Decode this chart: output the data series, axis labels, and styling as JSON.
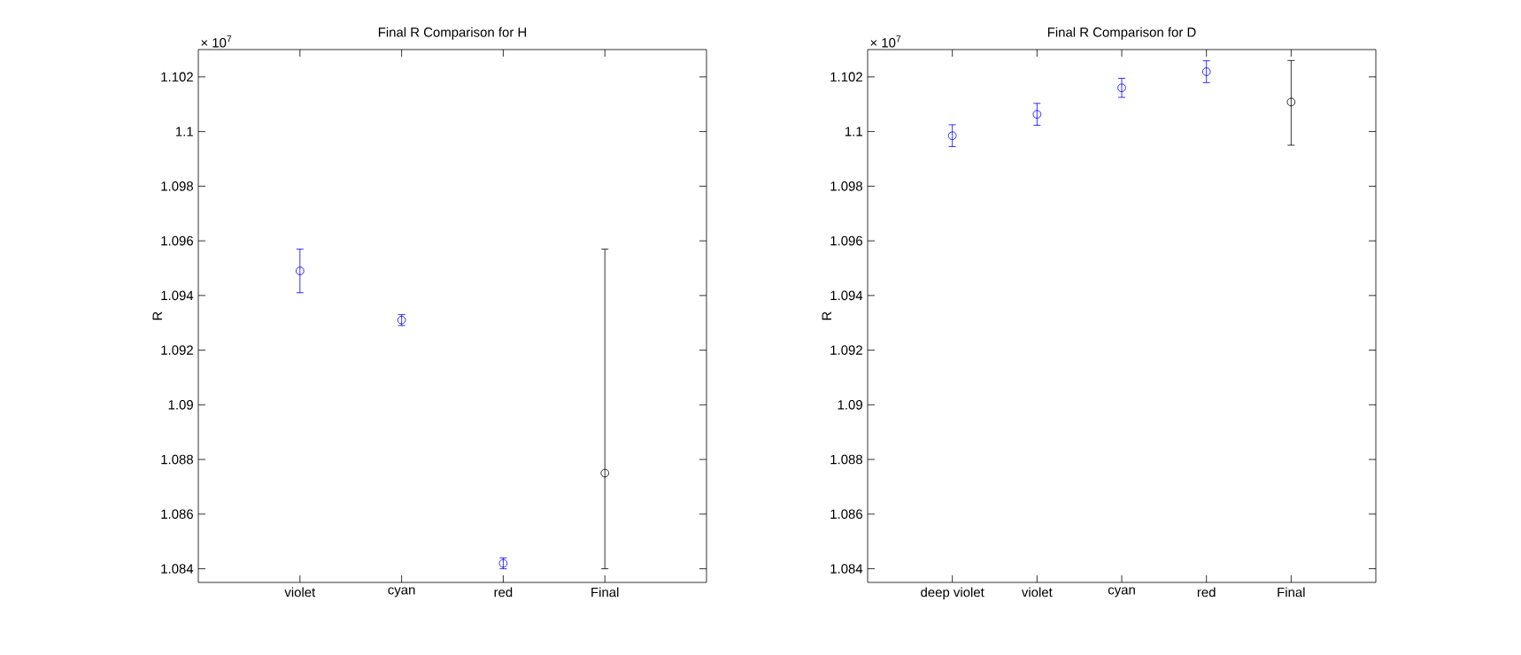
{
  "chart_data": [
    {
      "type": "scatter",
      "title": "Final R Comparison for H",
      "ylabel": "R",
      "annotations": [
        "× 10$^{7}$"
      ],
      "categories": [
        "violet",
        "cyan",
        "red",
        "Final"
      ],
      "values": [
        1.0949,
        1.0931,
        1.0842,
        1.0875
      ],
      "errors": [
        0.0008,
        0.0002,
        0.0002,
        [
          1.084,
          1.0957
        ]
      ],
      "colors": [
        "#0000ff",
        "#0000ff",
        "#0000ff",
        "#000000"
      ],
      "marker": "circle",
      "ylim": [
        1.0835,
        1.103
      ],
      "yticks": [
        1.084,
        1.086,
        1.088,
        1.09,
        1.092,
        1.094,
        1.096,
        1.098,
        1.1,
        1.102
      ]
    },
    {
      "type": "scatter",
      "title": "Final R Comparison for D",
      "ylabel": "R",
      "annotations": [
        "× 10$^{7}$"
      ],
      "categories": [
        "deep violet",
        "violet",
        "cyan",
        "red",
        "Final"
      ],
      "values": [
        1.09985,
        1.10063,
        1.1016,
        1.10219,
        1.10108
      ],
      "errors": [
        0.0004,
        0.0004,
        0.00035,
        0.0004,
        [
          1.0995,
          1.1026
        ]
      ],
      "colors": [
        "#0000ff",
        "#0000ff",
        "#0000ff",
        "#0000ff",
        "#000000"
      ],
      "marker": "circle",
      "ylim": [
        1.0835,
        1.103
      ],
      "yticks": [
        1.084,
        1.086,
        1.088,
        1.09,
        1.092,
        1.094,
        1.096,
        1.098,
        1.1,
        1.102
      ]
    }
  ]
}
